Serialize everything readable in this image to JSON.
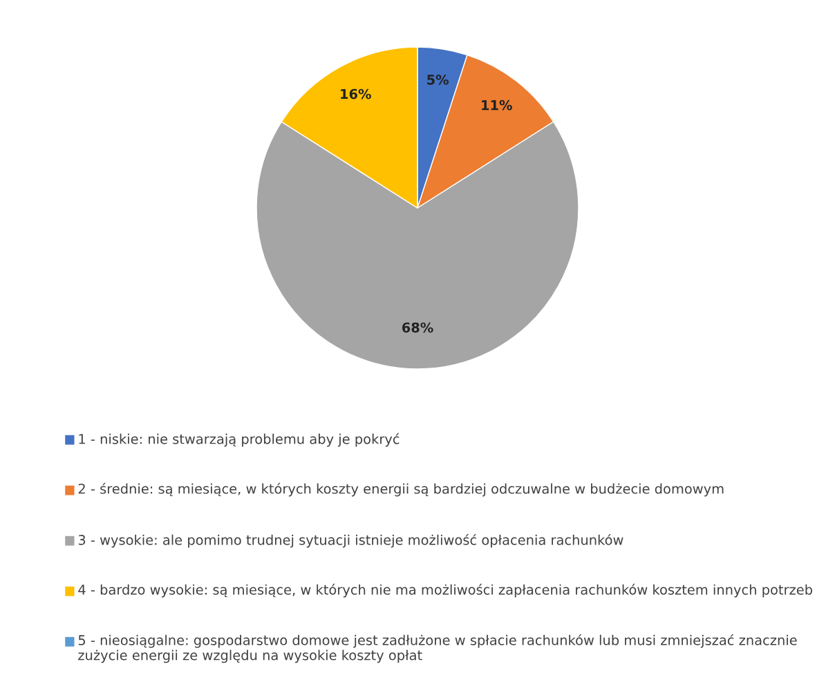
{
  "chart_data": {
    "type": "pie",
    "categories": [
      "1 - niskie: nie stwarzają problemu aby je pokryć",
      "2 - średnie: są miesiące, w których koszty energii są bardziej odczuwalne w budżecie domowym",
      "3 - wysokie: ale pomimo trudnej sytuacji istnieje możliwość opłacenia rachunków",
      "4 - bardzo wysokie: są miesiące, w których nie ma możliwości zapłacenia rachunków kosztem innych potrzeb",
      "5 - nieosiągalne: gospodarstwo domowe jest zadłużone w spłacie rachunków lub musi zmniejszać znacznie zużycie energii ze względu na wysokie koszty opłat"
    ],
    "values": [
      5,
      11,
      68,
      16,
      0
    ],
    "value_labels": [
      "5%",
      "11%",
      "68%",
      "16%",
      null
    ],
    "colors": [
      "#4472c4",
      "#ed7d31",
      "#a5a5a5",
      "#ffc000",
      "#5b9bd5"
    ],
    "legend": "bottom"
  }
}
